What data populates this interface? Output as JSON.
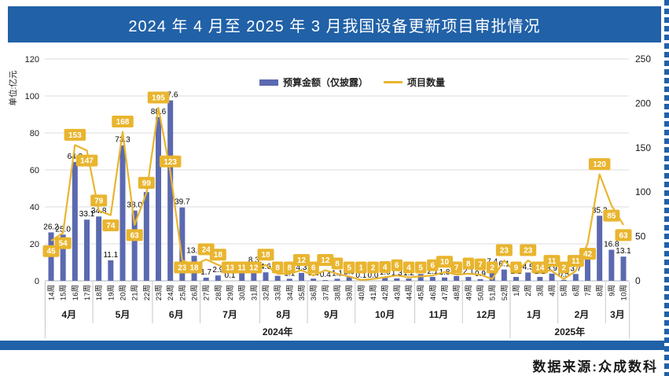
{
  "header": {
    "title": "2024 年 4 月至 2025 年 3 月我国设备更新项目审批情况"
  },
  "legend": {
    "bar_label": "预算金额（仅披露）",
    "line_label": "项目数量"
  },
  "footer": {
    "source": "数据来源:众成数科"
  },
  "colors": {
    "header_bg": "#2161A7",
    "bar": "#5B69B0",
    "line": "#E9B52F",
    "label_box": "#E9B52F",
    "label_box_text": "#FFFFFF",
    "grid": "#DCDCDC",
    "axis_line": "#B3B3B3",
    "separator": "#C8C8C8",
    "text": "#1A1A1A"
  },
  "chart_data": {
    "type": "bar+line",
    "title": "2024 年 4 月至 2025 年 3 月我国设备更新项目审批情况",
    "legend_position": "top-center",
    "grid": true,
    "left_axis": {
      "title": "单位:亿元",
      "min": 0,
      "max": 120,
      "step": 20,
      "ticks": [
        0,
        20,
        40,
        60,
        80,
        100,
        120
      ]
    },
    "right_axis": {
      "min": 0,
      "max": 250,
      "step": 50,
      "ticks": [
        0,
        50,
        100,
        150,
        200,
        250
      ]
    },
    "series": [
      {
        "name": "预算金额（仅披露）",
        "type": "bar",
        "axis": "left",
        "unit": "亿元"
      },
      {
        "name": "项目数量",
        "type": "line",
        "axis": "right",
        "unit": "个"
      }
    ],
    "years": [
      {
        "label": "2024年",
        "months": [
          {
            "label": "4月",
            "weeks": [
              "14周",
              "15周",
              "16周",
              "17周"
            ]
          },
          {
            "label": "5月",
            "weeks": [
              "18周",
              "19周",
              "20周",
              "21周",
              "22周"
            ]
          },
          {
            "label": "6月",
            "weeks": [
              "23周",
              "24周",
              "25周",
              "26周"
            ]
          },
          {
            "label": "7月",
            "weeks": [
              "27周",
              "28周",
              "29周",
              "30周",
              "31周"
            ]
          },
          {
            "label": "8月",
            "weeks": [
              "32周",
              "33周",
              "34周",
              "35周"
            ]
          },
          {
            "label": "9月",
            "weeks": [
              "36周",
              "37周",
              "38周",
              "39周"
            ]
          },
          {
            "label": "10月",
            "weeks": [
              "40周",
              "41周",
              "42周",
              "43周",
              "44周"
            ]
          },
          {
            "label": "11月",
            "weeks": [
              "45周",
              "46周",
              "47周",
              "48周"
            ]
          },
          {
            "label": "12月",
            "weeks": [
              "49周",
              "50周",
              "51周",
              "52周"
            ]
          }
        ]
      },
      {
        "label": "2025年",
        "months": [
          {
            "label": "1月",
            "weeks": [
              "1周",
              "2周",
              "3周",
              "4周"
            ]
          },
          {
            "label": "2月",
            "weeks": [
              "5周",
              "6周",
              "7周",
              "8周"
            ]
          },
          {
            "label": "3月",
            "weeks": [
              "9周",
              "10周"
            ]
          }
        ]
      }
    ],
    "points": [
      {
        "week": "14周",
        "budget": 26.2,
        "count": 45
      },
      {
        "week": "15周",
        "budget": 25.0,
        "count": 54
      },
      {
        "week": "16周",
        "budget": 64.3,
        "count": 153
      },
      {
        "week": "17周",
        "budget": 33.1,
        "count": 147
      },
      {
        "week": "18周",
        "budget": 34.8,
        "count": 79
      },
      {
        "week": "19周",
        "budget": 11.1,
        "count": 74
      },
      {
        "week": "20周",
        "budget": 73.3,
        "count": 168
      },
      {
        "week": "21周",
        "budget": 38.0,
        "count": 63
      },
      {
        "week": "22周",
        "budget": 48.0,
        "count": 99
      },
      {
        "week": "23周",
        "budget": 88.6,
        "count": 195
      },
      {
        "week": "24周",
        "budget": 97.6,
        "count": 123
      },
      {
        "week": "25周",
        "budget": 39.7,
        "count": 23
      },
      {
        "week": "26周",
        "budget": 13.5,
        "count": 18
      },
      {
        "week": "27周",
        "budget": 1.7,
        "count": 24
      },
      {
        "week": "28周",
        "budget": 2.9,
        "count": 18
      },
      {
        "week": "29周",
        "budget": 0.1,
        "count": 13
      },
      {
        "week": "30周",
        "budget": 5.8,
        "count": 11
      },
      {
        "week": "31周",
        "budget": 8.3,
        "count": 12
      },
      {
        "week": "32周",
        "budget": 4.6,
        "count": 18
      },
      {
        "week": "33周",
        "budget": 2.7,
        "count": 8
      },
      {
        "week": "34周",
        "budget": 1.1,
        "count": 8
      },
      {
        "week": "35周",
        "budget": 4.3,
        "count": 12
      },
      {
        "week": "36周",
        "budget": 1.2,
        "count": 6
      },
      {
        "week": "37周",
        "budget": 0.4,
        "count": 12
      },
      {
        "week": "38周",
        "budget": 1.1,
        "count": 8
      },
      {
        "week": "39周",
        "budget": 2.0,
        "count": 5
      },
      {
        "week": "40周",
        "budget": 0.1,
        "count": 1
      },
      {
        "week": "41周",
        "budget": 0.0,
        "count": 2
      },
      {
        "week": "42周",
        "budget": 1.6,
        "count": 4
      },
      {
        "week": "43周",
        "budget": 1.3,
        "count": 6
      },
      {
        "week": "44周",
        "budget": 1.2,
        "count": 4
      },
      {
        "week": "45周",
        "budget": 3.7,
        "count": 5
      },
      {
        "week": "46周",
        "budget": 2.1,
        "count": 6
      },
      {
        "week": "47周",
        "budget": 1.8,
        "count": 10
      },
      {
        "week": "48周",
        "budget": 2.6,
        "count": 7
      },
      {
        "week": "49周",
        "budget": 2.1,
        "count": 8
      },
      {
        "week": "50周",
        "budget": 0.9,
        "count": 7
      },
      {
        "week": "51周",
        "budget": 7.4,
        "count": 2
      },
      {
        "week": "52周",
        "budget": 6.1,
        "count": 23
      },
      {
        "week": "1周",
        "budget": 2.1,
        "count": 9
      },
      {
        "week": "2周",
        "budget": 4.5,
        "count": 23
      },
      {
        "week": "3周",
        "budget": 2.1,
        "count": 14
      },
      {
        "week": "4周",
        "budget": 3.9,
        "count": 11
      },
      {
        "week": "5周",
        "budget": 0.5,
        "count": 2
      },
      {
        "week": "6周",
        "budget": 3.7,
        "count": 11
      },
      {
        "week": "7周",
        "budget": 12.3,
        "count": 42
      },
      {
        "week": "8周",
        "budget": 35.2,
        "count": 120
      },
      {
        "week": "9周",
        "budget": 16.8,
        "count": 85
      },
      {
        "week": "10周",
        "budget": 13.1,
        "count": 63
      }
    ]
  }
}
